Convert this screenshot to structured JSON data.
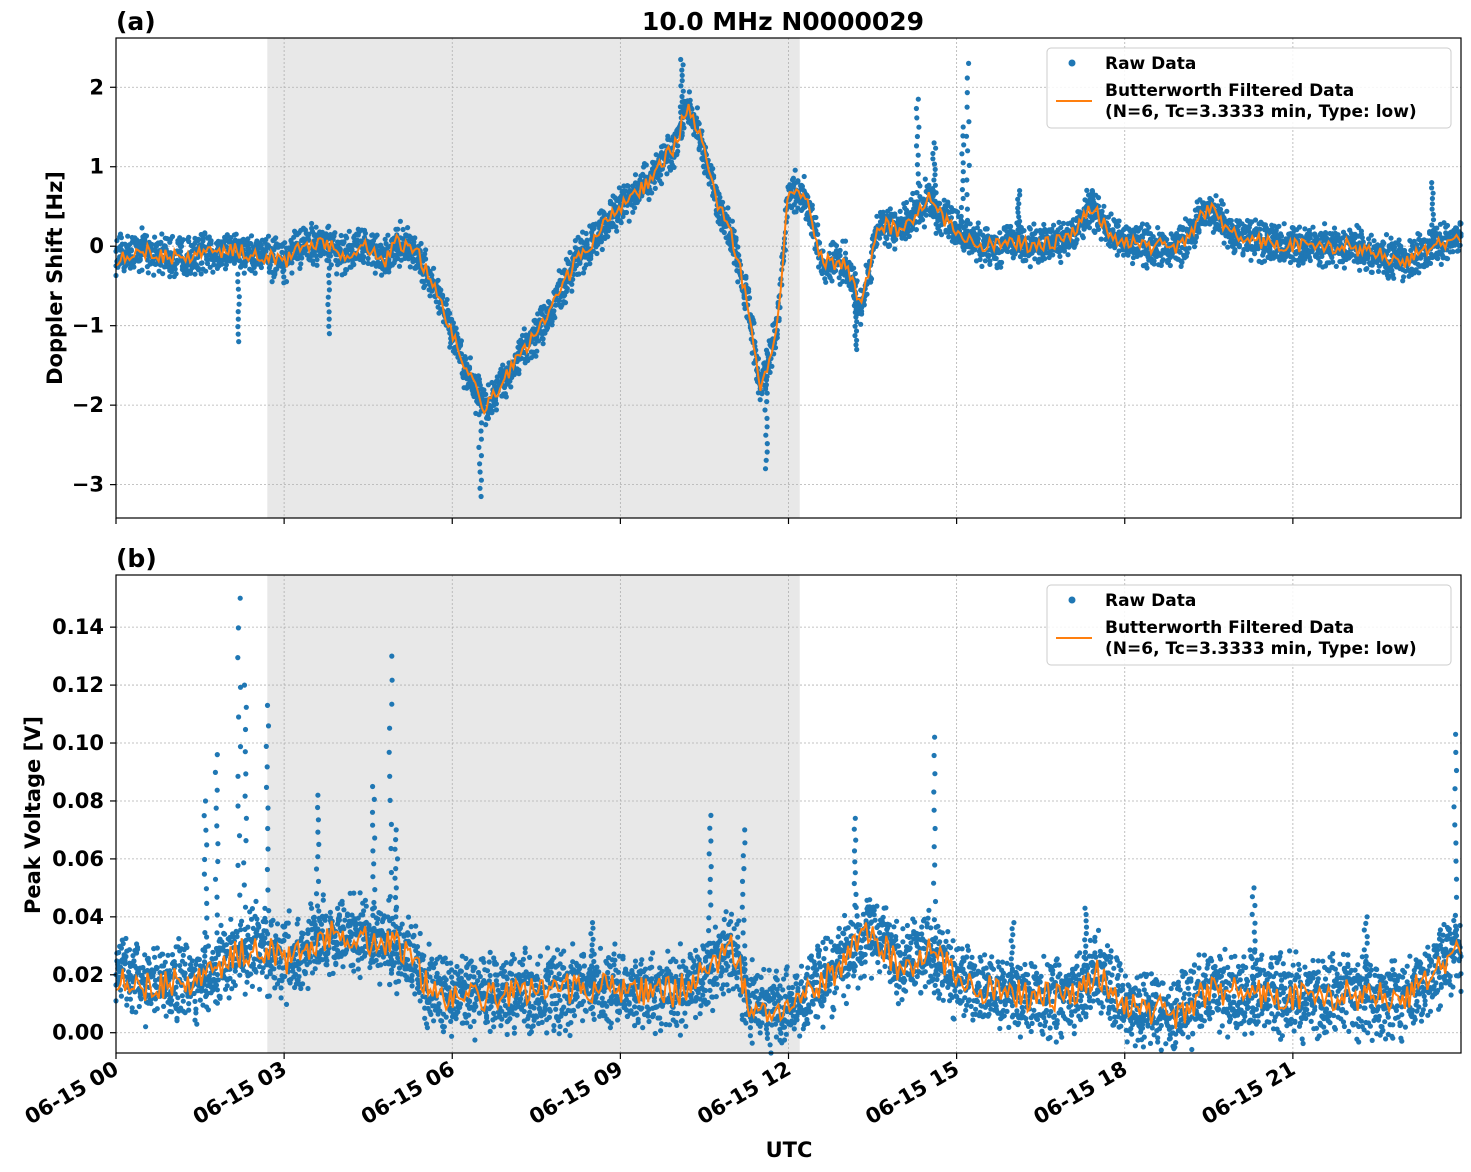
{
  "figure": {
    "title": "10.0 MHz N0000029",
    "xlabel": "UTC",
    "x_tick_labels": [
      "06-15 00",
      "06-15 03",
      "06-15 06",
      "06-15 09",
      "06-15 12",
      "06-15 15",
      "06-15 18",
      "06-15 21"
    ],
    "colors": {
      "raw": "#1f77b4",
      "filtered": "#ff7f0e",
      "shade": "#e8e8e8",
      "grid": "#b0b0b0"
    }
  },
  "chart_data": [
    {
      "type": "scatter",
      "panel_label": "(a)",
      "ylabel": "Doppler Shift [Hz]",
      "xlabel": "UTC",
      "x_unit": "hours UTC on 06-15",
      "xlim": [
        0,
        24
      ],
      "ylim": [
        -3.42,
        2.62
      ],
      "yticks": [
        -3,
        -2,
        -1,
        0,
        1,
        2
      ],
      "y_tick_labels": [
        "−3",
        "−2",
        "−1",
        "0",
        "1",
        "2"
      ],
      "grid": true,
      "shaded_span": [
        2.7,
        12.2
      ],
      "legend": {
        "placement": "top-right",
        "entries": [
          "Raw Data",
          "Butterworth Filtered Data",
          "(N=6, Tc=3.3333 min, Type: low)"
        ]
      },
      "series": [
        {
          "name": "Raw Data",
          "style": "points",
          "band": 0.22
        },
        {
          "name": "Butterworth Filtered Data (N=6, Tc=3.3333 min, Type: low)",
          "style": "line"
        }
      ],
      "trend": [
        [
          0.0,
          -0.15
        ],
        [
          0.5,
          -0.05
        ],
        [
          1.0,
          -0.15
        ],
        [
          1.5,
          -0.1
        ],
        [
          2.0,
          -0.05
        ],
        [
          2.5,
          -0.1
        ],
        [
          3.0,
          -0.2
        ],
        [
          3.3,
          0.0
        ],
        [
          3.7,
          0.05
        ],
        [
          4.0,
          -0.1
        ],
        [
          4.5,
          0.0
        ],
        [
          4.8,
          -0.2
        ],
        [
          5.0,
          0.05
        ],
        [
          5.4,
          -0.1
        ],
        [
          5.8,
          -0.7
        ],
        [
          6.2,
          -1.5
        ],
        [
          6.6,
          -2.05
        ],
        [
          7.0,
          -1.6
        ],
        [
          7.6,
          -1.0
        ],
        [
          8.2,
          -0.2
        ],
        [
          9.0,
          0.5
        ],
        [
          9.5,
          0.8
        ],
        [
          10.0,
          1.3
        ],
        [
          10.2,
          1.8
        ],
        [
          10.5,
          1.2
        ],
        [
          10.7,
          0.6
        ],
        [
          11.0,
          0.1
        ],
        [
          11.3,
          -0.8
        ],
        [
          11.5,
          -1.8
        ],
        [
          11.8,
          -1.0
        ],
        [
          12.0,
          0.7
        ],
        [
          12.3,
          0.6
        ],
        [
          12.6,
          -0.2
        ],
        [
          13.0,
          -0.2
        ],
        [
          13.3,
          -0.8
        ],
        [
          13.6,
          0.3
        ],
        [
          14.0,
          0.2
        ],
        [
          14.5,
          0.6
        ],
        [
          14.8,
          0.3
        ],
        [
          15.2,
          0.1
        ],
        [
          15.6,
          0.0
        ],
        [
          16.0,
          0.05
        ],
        [
          16.5,
          0.0
        ],
        [
          17.0,
          0.1
        ],
        [
          17.4,
          0.5
        ],
        [
          17.8,
          0.1
        ],
        [
          18.5,
          0.0
        ],
        [
          19.0,
          0.0
        ],
        [
          19.5,
          0.5
        ],
        [
          20.0,
          0.1
        ],
        [
          21.0,
          0.0
        ],
        [
          22.0,
          0.0
        ],
        [
          22.5,
          -0.1
        ],
        [
          23.0,
          -0.2
        ],
        [
          23.5,
          0.0
        ],
        [
          24.0,
          0.1
        ]
      ],
      "spikes": [
        [
          6.5,
          -3.15
        ],
        [
          11.6,
          -2.8
        ],
        [
          10.1,
          2.35
        ],
        [
          13.2,
          -1.3
        ],
        [
          14.3,
          1.85
        ],
        [
          14.6,
          1.3
        ],
        [
          15.2,
          2.3
        ],
        [
          15.1,
          1.5
        ],
        [
          16.1,
          0.7
        ],
        [
          17.4,
          0.7
        ],
        [
          2.2,
          -1.2
        ],
        [
          3.8,
          -1.1
        ],
        [
          23.5,
          0.8
        ]
      ]
    },
    {
      "type": "scatter",
      "panel_label": "(b)",
      "ylabel": "Peak Voltage [V]",
      "xlabel": "UTC",
      "x_unit": "hours UTC on 06-15",
      "xlim": [
        0,
        24
      ],
      "ylim": [
        -0.007,
        0.158
      ],
      "yticks": [
        0.0,
        0.02,
        0.04,
        0.06,
        0.08,
        0.1,
        0.12,
        0.14
      ],
      "y_tick_labels": [
        "0.00",
        "0.02",
        "0.04",
        "0.06",
        "0.08",
        "0.10",
        "0.12",
        "0.14"
      ],
      "grid": true,
      "shaded_span": [
        2.7,
        12.2
      ],
      "legend": {
        "placement": "top-right",
        "entries": [
          "Raw Data",
          "Butterworth Filtered Data",
          "(N=6, Tc=3.3333 min, Type: low)"
        ]
      },
      "series": [
        {
          "name": "Raw Data",
          "style": "points",
          "band": 0.012
        },
        {
          "name": "Butterworth Filtered Data (N=6, Tc=3.3333 min, Type: low)",
          "style": "line"
        }
      ],
      "trend": [
        [
          0.0,
          0.02
        ],
        [
          0.5,
          0.016
        ],
        [
          1.0,
          0.017
        ],
        [
          1.5,
          0.018
        ],
        [
          2.0,
          0.025
        ],
        [
          2.5,
          0.03
        ],
        [
          3.0,
          0.025
        ],
        [
          3.5,
          0.03
        ],
        [
          4.0,
          0.035
        ],
        [
          4.5,
          0.032
        ],
        [
          5.0,
          0.03
        ],
        [
          5.3,
          0.025
        ],
        [
          5.6,
          0.015
        ],
        [
          6.0,
          0.012
        ],
        [
          7.0,
          0.013
        ],
        [
          8.0,
          0.015
        ],
        [
          9.0,
          0.015
        ],
        [
          10.0,
          0.014
        ],
        [
          10.5,
          0.02
        ],
        [
          11.0,
          0.03
        ],
        [
          11.3,
          0.01
        ],
        [
          12.0,
          0.008
        ],
        [
          12.5,
          0.015
        ],
        [
          13.0,
          0.025
        ],
        [
          13.5,
          0.035
        ],
        [
          14.0,
          0.022
        ],
        [
          14.5,
          0.028
        ],
        [
          15.0,
          0.02
        ],
        [
          15.5,
          0.015
        ],
        [
          16.0,
          0.013
        ],
        [
          17.0,
          0.012
        ],
        [
          17.5,
          0.02
        ],
        [
          18.0,
          0.01
        ],
        [
          19.0,
          0.006
        ],
        [
          19.5,
          0.015
        ],
        [
          20.0,
          0.014
        ],
        [
          21.0,
          0.012
        ],
        [
          22.0,
          0.013
        ],
        [
          23.0,
          0.012
        ],
        [
          23.5,
          0.02
        ],
        [
          24.0,
          0.03
        ]
      ],
      "spikes": [
        [
          2.2,
          0.15
        ],
        [
          2.3,
          0.12
        ],
        [
          2.7,
          0.113
        ],
        [
          4.9,
          0.13
        ],
        [
          4.6,
          0.085
        ],
        [
          3.6,
          0.082
        ],
        [
          1.8,
          0.096
        ],
        [
          1.6,
          0.08
        ],
        [
          10.6,
          0.075
        ],
        [
          11.2,
          0.07
        ],
        [
          13.2,
          0.074
        ],
        [
          14.6,
          0.102
        ],
        [
          23.9,
          0.103
        ],
        [
          8.5,
          0.038
        ],
        [
          17.3,
          0.043
        ],
        [
          20.3,
          0.05
        ],
        [
          22.3,
          0.04
        ],
        [
          16.0,
          0.038
        ],
        [
          5.0,
          0.07
        ]
      ]
    }
  ]
}
